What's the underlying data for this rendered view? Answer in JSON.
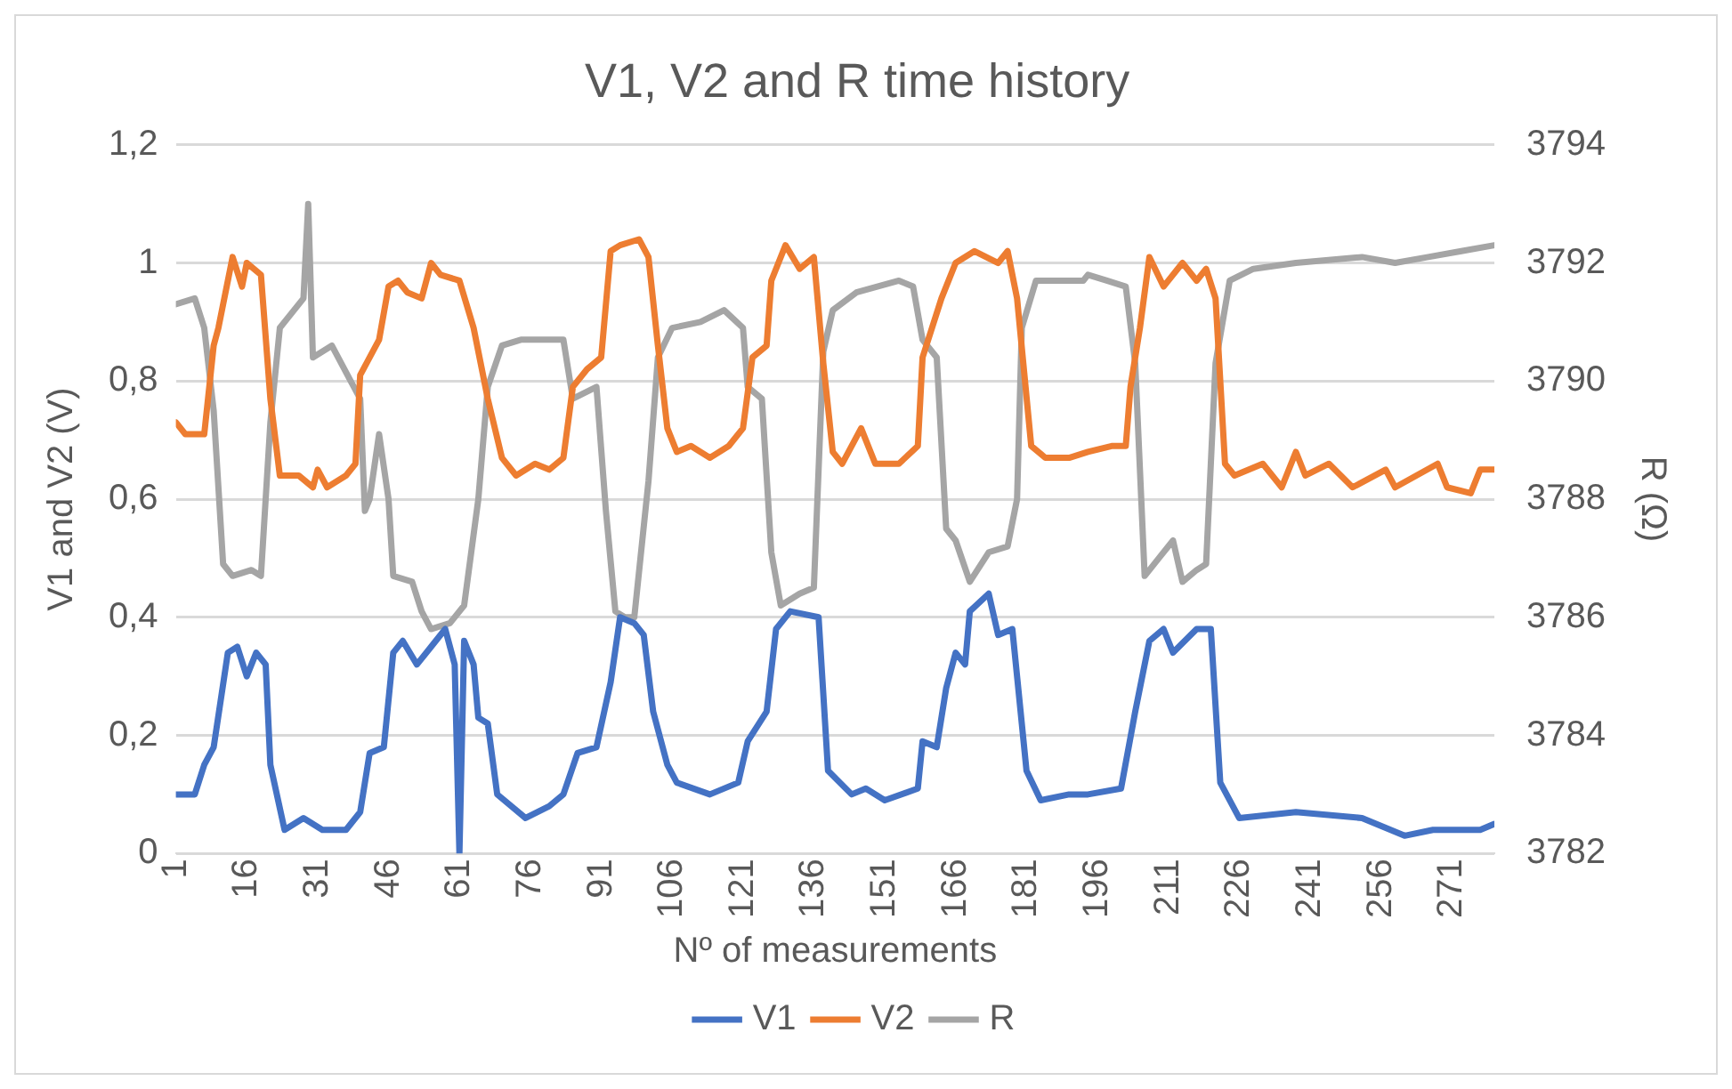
{
  "chart_data": {
    "type": "line",
    "title": "V1, V2 and R time history",
    "xlabel": "Nº of measurements",
    "ylabel": "V1 and V2 (V)",
    "y2label": "R (Ω)",
    "xlim": [
      1,
      280
    ],
    "xticks": [
      1,
      16,
      31,
      46,
      61,
      76,
      91,
      106,
      121,
      136,
      151,
      166,
      181,
      196,
      211,
      226,
      241,
      256,
      271
    ],
    "ylim": [
      0,
      1.2
    ],
    "yticks": [
      0,
      {
        "value": 0.2,
        "label": "0,2"
      },
      {
        "value": 0.4,
        "label": "0,4"
      },
      {
        "value": 0.6,
        "label": "0,6"
      },
      {
        "value": 0.8,
        "label": "0,8"
      },
      1,
      {
        "value": 1.2,
        "label": "1,2"
      }
    ],
    "y2lim": [
      3782,
      3794
    ],
    "y2ticks": [
      3782,
      3784,
      3786,
      3788,
      3790,
      3792,
      3794
    ],
    "grid": "y",
    "legend": "bottom",
    "marker": "none",
    "line_style": "solid",
    "series": [
      {
        "name": "V1",
        "color": "#4472c4",
        "x": [
          1,
          5,
          7,
          9,
          12,
          14,
          16,
          18,
          20,
          21,
          24,
          28,
          32,
          37,
          40,
          42,
          45,
          47,
          49,
          52,
          55,
          58,
          60,
          61,
          62,
          64,
          65,
          67,
          69,
          75,
          80,
          83,
          86,
          90,
          93,
          95,
          98,
          100,
          102,
          105,
          107,
          114,
          120,
          122,
          126,
          128,
          131,
          137,
          139,
          144,
          147,
          151,
          158,
          159,
          162,
          164,
          166,
          168,
          169,
          173,
          175,
          178,
          181,
          184,
          190,
          194,
          201,
          204,
          207,
          210,
          212,
          217,
          220,
          222,
          226,
          238,
          252,
          261,
          267,
          277,
          280
        ],
        "values": [
          0.1,
          0.1,
          0.15,
          0.18,
          0.34,
          0.35,
          0.3,
          0.34,
          0.32,
          0.15,
          0.04,
          0.06,
          0.04,
          0.04,
          0.07,
          0.17,
          0.18,
          0.34,
          0.36,
          0.32,
          0.35,
          0.38,
          0.32,
          0,
          0.36,
          0.32,
          0.23,
          0.22,
          0.1,
          0.06,
          0.08,
          0.1,
          0.17,
          0.18,
          0.29,
          0.4,
          0.39,
          0.37,
          0.24,
          0.15,
          0.12,
          0.1,
          0.12,
          0.19,
          0.24,
          0.38,
          0.41,
          0.4,
          0.14,
          0.1,
          0.11,
          0.09,
          0.11,
          0.19,
          0.18,
          0.28,
          0.34,
          0.32,
          0.41,
          0.44,
          0.37,
          0.38,
          0.14,
          0.09,
          0.1,
          0.1,
          0.11,
          0.24,
          0.36,
          0.38,
          0.34,
          0.38,
          0.38,
          0.12,
          0.06,
          0.07,
          0.06,
          0.03,
          0.04,
          0.04,
          0.05
        ]
      },
      {
        "name": "V2",
        "color": "#ed7d31",
        "x": [
          1,
          3,
          7,
          9,
          10,
          12,
          13,
          15,
          16,
          19,
          21,
          23,
          27,
          30,
          31,
          33,
          37,
          39,
          40,
          44,
          46,
          48,
          50,
          53,
          55,
          57,
          61,
          64,
          67,
          70,
          73,
          77,
          80,
          83,
          85,
          88,
          91,
          93,
          95,
          99,
          101,
          103,
          105,
          107,
          110,
          114,
          118,
          121,
          123,
          126,
          127,
          130,
          133,
          136,
          138,
          140,
          142,
          146,
          149,
          154,
          158,
          159,
          163,
          166,
          170,
          175,
          177,
          179,
          182,
          185,
          190,
          194,
          199,
          202,
          203,
          205,
          207,
          210,
          214,
          217,
          219,
          221,
          223,
          225,
          231,
          235,
          238,
          240,
          245,
          250,
          257,
          259,
          268,
          270,
          275,
          277,
          280
        ],
        "values": [
          0.73,
          0.71,
          0.71,
          0.86,
          0.89,
          0.97,
          1.01,
          0.96,
          1,
          0.98,
          0.77,
          0.64,
          0.64,
          0.62,
          0.65,
          0.62,
          0.64,
          0.66,
          0.81,
          0.87,
          0.96,
          0.97,
          0.95,
          0.94,
          1,
          0.98,
          0.97,
          0.89,
          0.77,
          0.67,
          0.64,
          0.66,
          0.65,
          0.67,
          0.79,
          0.82,
          0.84,
          1.02,
          1.03,
          1.04,
          1.01,
          0.86,
          0.72,
          0.68,
          0.69,
          0.67,
          0.69,
          0.72,
          0.84,
          0.86,
          0.97,
          1.03,
          0.99,
          1.01,
          0.83,
          0.68,
          0.66,
          0.72,
          0.66,
          0.66,
          0.69,
          0.84,
          0.94,
          1,
          1.02,
          1,
          1.02,
          0.94,
          0.69,
          0.67,
          0.67,
          0.68,
          0.69,
          0.69,
          0.79,
          0.89,
          1.01,
          0.96,
          1,
          0.97,
          0.99,
          0.94,
          0.66,
          0.64,
          0.66,
          0.62,
          0.68,
          0.64,
          0.66,
          0.62,
          0.65,
          0.62,
          0.66,
          0.62,
          0.61,
          0.65,
          0.65
        ]
      },
      {
        "name": "R",
        "color": "#a5a5a5",
        "axis": "y2",
        "x": [
          1,
          5,
          7,
          9,
          11,
          13,
          17,
          19,
          21,
          23,
          28,
          29,
          30,
          34,
          38,
          40,
          41,
          42,
          44,
          46,
          47,
          51,
          53,
          55,
          59,
          62,
          65,
          67,
          70,
          74,
          83,
          85,
          90,
          92,
          94,
          96,
          98,
          101,
          103,
          106,
          112,
          117,
          121,
          122,
          125,
          127,
          129,
          133,
          136,
          138,
          140,
          145,
          154,
          157,
          159,
          162,
          164,
          166,
          169,
          173,
          177,
          179,
          180,
          183,
          193,
          194,
          198,
          202,
          204,
          206,
          209,
          212,
          214,
          217,
          219,
          221,
          224,
          229,
          238,
          252,
          259,
          266,
          273,
          280
        ],
        "values": [
          3791.3,
          3791.4,
          3790.9,
          3789.5,
          3786.9,
          3786.7,
          3786.8,
          3786.7,
          3789.3,
          3790.9,
          3791.4,
          3793.0,
          3790.4,
          3790.6,
          3790.0,
          3789.7,
          3787.8,
          3788.0,
          3789.1,
          3788.0,
          3786.7,
          3786.6,
          3786.1,
          3785.8,
          3785.9,
          3786.2,
          3788.0,
          3789.9,
          3790.6,
          3790.7,
          3790.7,
          3789.7,
          3789.9,
          3787.8,
          3786.1,
          3786.0,
          3786.0,
          3788.3,
          3790.4,
          3790.9,
          3791.0,
          3791.2,
          3790.9,
          3789.9,
          3789.7,
          3787.1,
          3786.2,
          3786.4,
          3786.5,
          3790.5,
          3791.2,
          3791.5,
          3791.7,
          3791.6,
          3790.7,
          3790.4,
          3787.5,
          3787.3,
          3786.6,
          3787.1,
          3787.2,
          3788.0,
          3790.9,
          3791.7,
          3791.7,
          3791.8,
          3791.7,
          3791.6,
          3790.3,
          3786.7,
          3787.0,
          3787.3,
          3786.6,
          3786.8,
          3786.9,
          3790.3,
          3791.7,
          3791.9,
          3792.0,
          3792.1,
          3792.0,
          3792.1,
          3792.2,
          3792.3
        ]
      }
    ]
  }
}
